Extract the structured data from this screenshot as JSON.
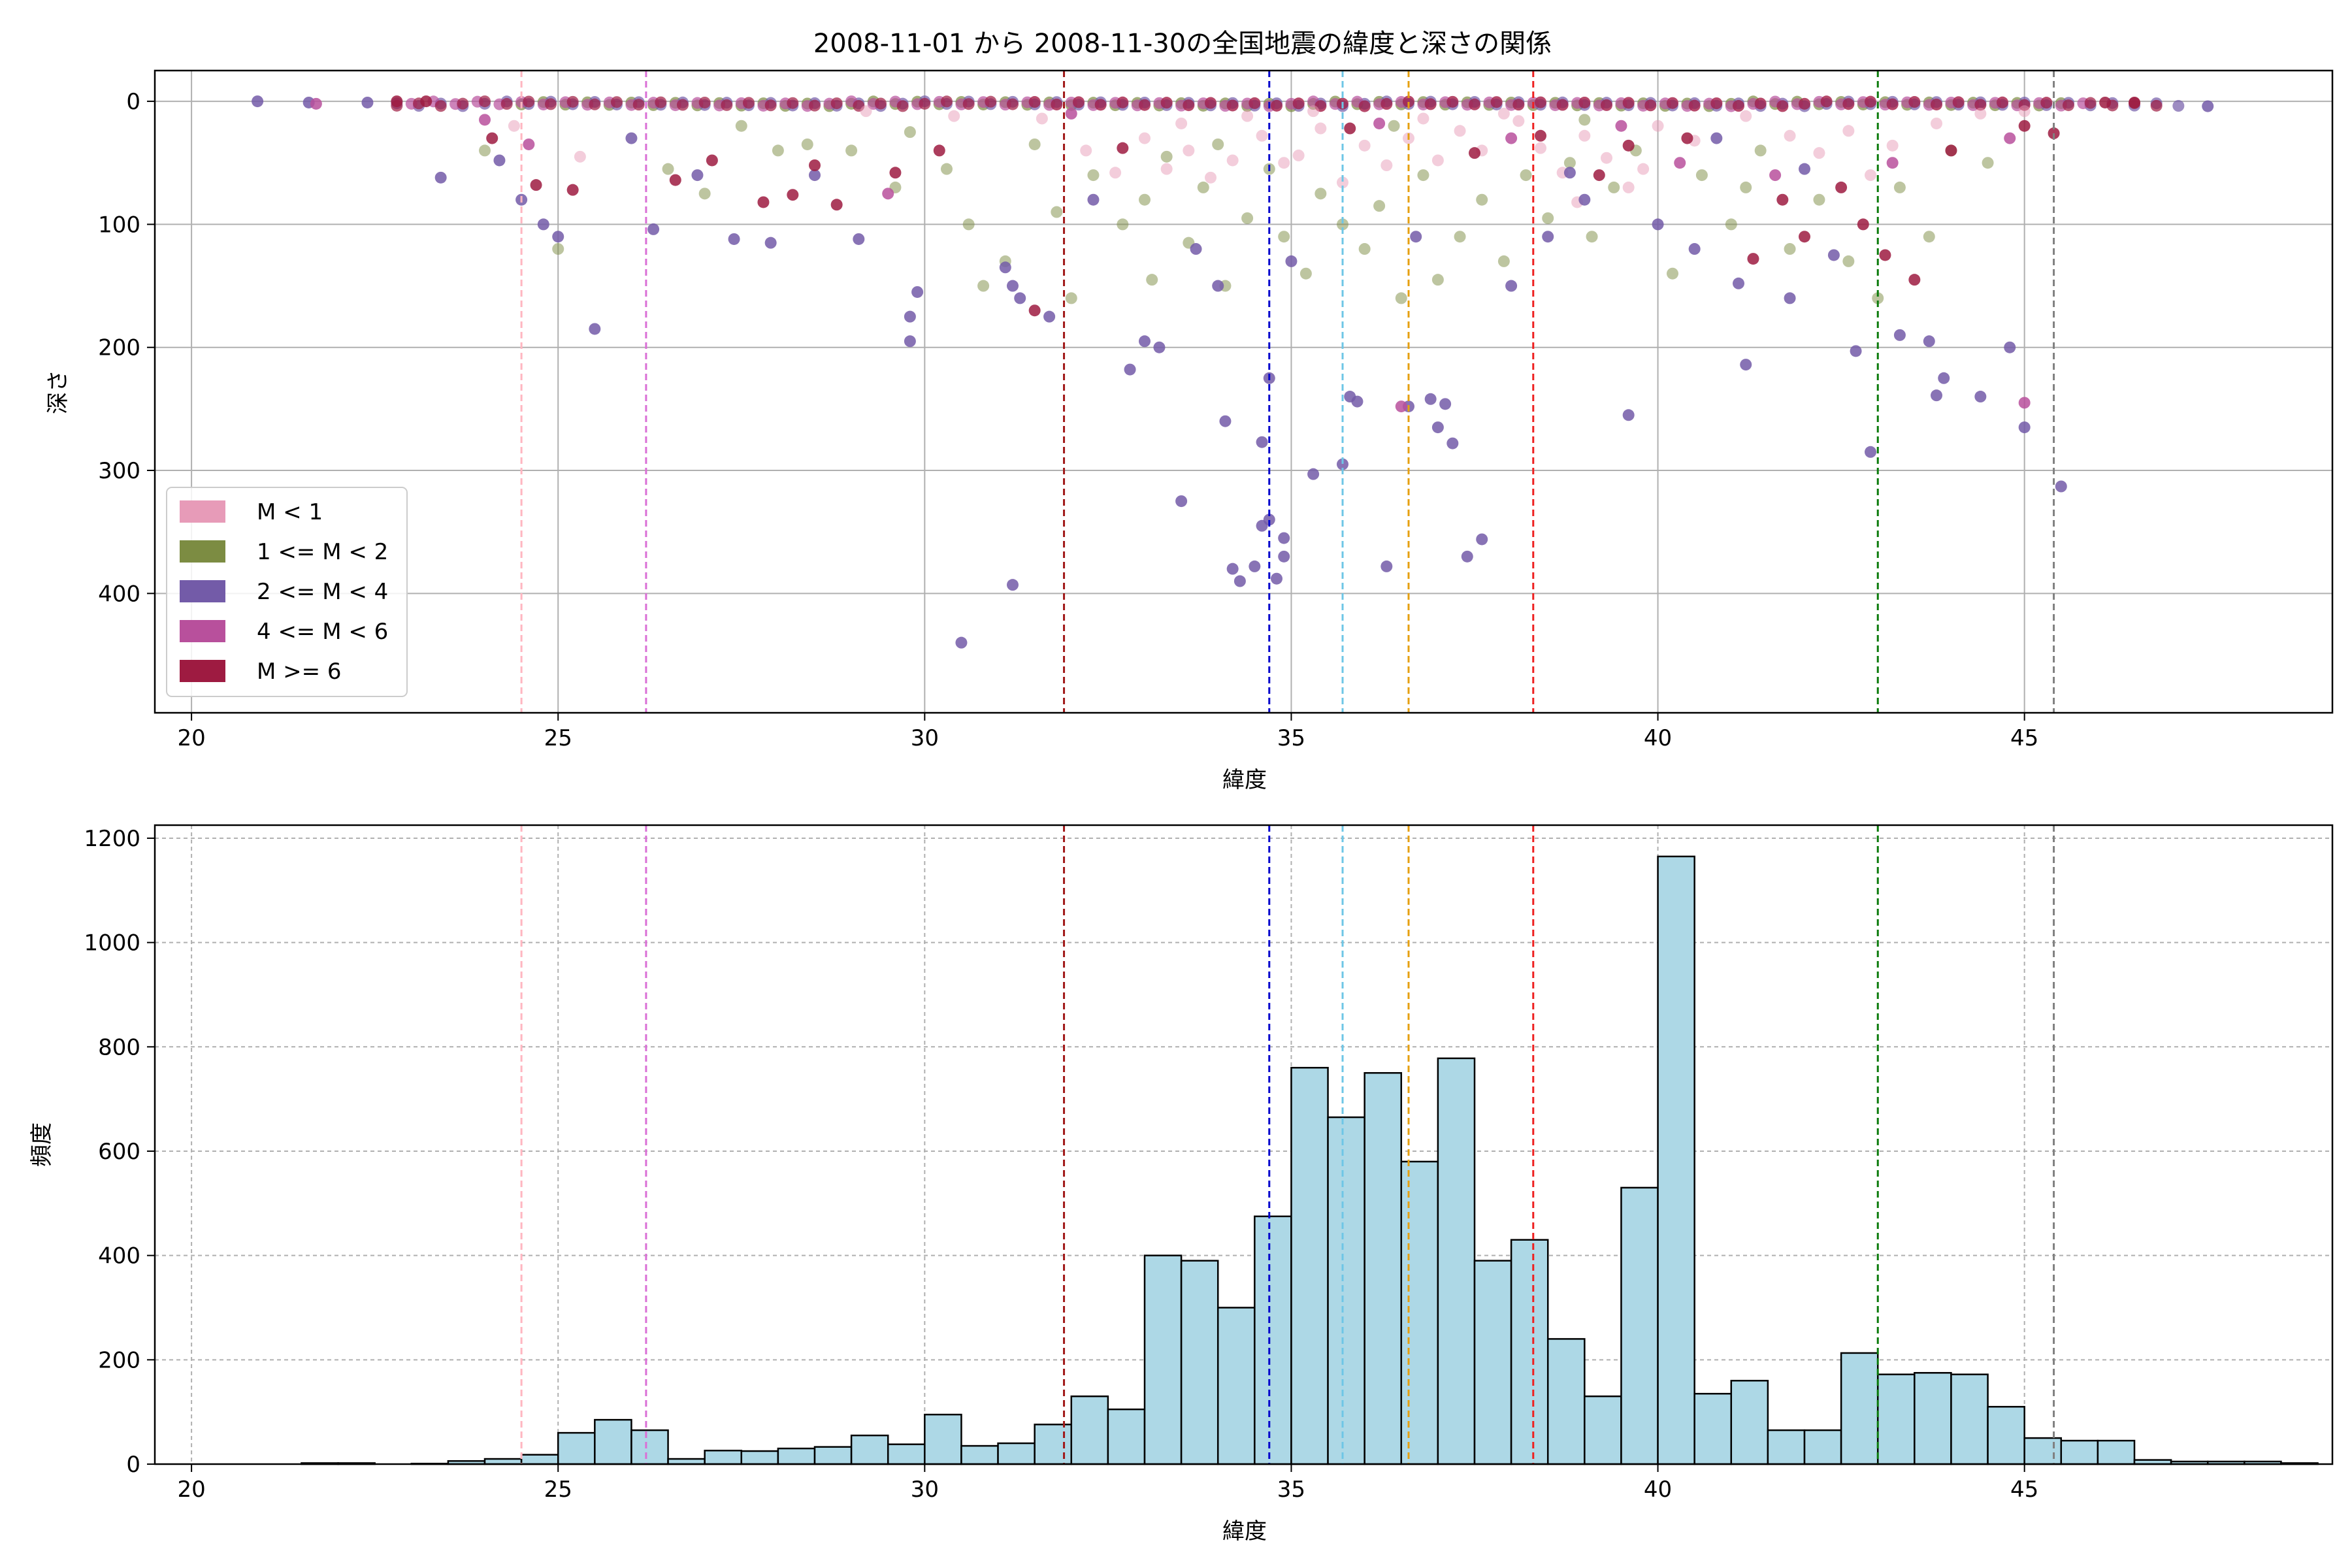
{
  "figure": {
    "title": "2008-11-01 から 2008-11-30の全国地震の緯度と深さの関係"
  },
  "colors": {
    "m_lt1": "#e79bb8",
    "m_1_2": "#7c8c42",
    "m_2_4": "#735ba8",
    "m_4_6": "#b8509c",
    "m_ge6": "#9e1b41",
    "hist_fill": "#add8e6",
    "grid": "#b0b0b0"
  },
  "reference_lines": [
    {
      "x": 24.5,
      "color": "#ffb6c1"
    },
    {
      "x": 26.2,
      "color": "#da70d6"
    },
    {
      "x": 31.9,
      "color": "#a01818"
    },
    {
      "x": 34.7,
      "color": "#0000cc"
    },
    {
      "x": 35.7,
      "color": "#6ec6e6"
    },
    {
      "x": 36.6,
      "color": "#e6a010"
    },
    {
      "x": 38.3,
      "color": "#ee2020"
    },
    {
      "x": 43.0,
      "color": "#0a7a0a"
    },
    {
      "x": 45.4,
      "color": "#808080"
    }
  ],
  "chart_data": [
    {
      "type": "scatter",
      "title": "2008-11-01 から 2008-11-30の全国地震の緯度と深さの関係",
      "xlabel": "緯度",
      "ylabel": "深さ",
      "xlim": [
        19.5,
        49.2
      ],
      "ylim": [
        497,
        -25
      ],
      "y_inverted": true,
      "xticks": [
        20,
        25,
        30,
        35,
        40,
        45
      ],
      "yticks": [
        0,
        100,
        200,
        300,
        400
      ],
      "grid": true,
      "legend_position": "lower-left",
      "legend": [
        {
          "label": "M < 1",
          "color": "#e79bb8"
        },
        {
          "label": "1 <= M < 2",
          "color": "#7c8c42"
        },
        {
          "label": "2 <= M < 4",
          "color": "#735ba8"
        },
        {
          "label": "4 <= M < 6",
          "color": "#b8509c"
        },
        {
          "label": "M >= 6",
          "color": "#9e1b41"
        }
      ],
      "series": [
        {
          "name": "M < 1",
          "color": "#e79bb8",
          "points": [
            [
              24.4,
              20
            ],
            [
              25.3,
              45
            ],
            [
              31.6,
              14
            ],
            [
              32.2,
              40
            ],
            [
              32.6,
              58
            ],
            [
              33.0,
              30
            ],
            [
              33.3,
              55
            ],
            [
              33.6,
              40
            ],
            [
              33.9,
              62
            ],
            [
              34.2,
              48
            ],
            [
              34.6,
              28
            ],
            [
              34.9,
              50
            ],
            [
              35.1,
              44
            ],
            [
              35.4,
              22
            ],
            [
              35.7,
              66
            ],
            [
              36.0,
              36
            ],
            [
              36.3,
              52
            ],
            [
              36.6,
              30
            ],
            [
              37.0,
              48
            ],
            [
              37.3,
              24
            ],
            [
              37.6,
              40
            ],
            [
              38.1,
              16
            ],
            [
              38.4,
              38
            ],
            [
              38.7,
              58
            ],
            [
              39.0,
              28
            ],
            [
              39.3,
              46
            ],
            [
              39.6,
              70
            ],
            [
              40.0,
              20
            ],
            [
              40.5,
              32
            ],
            [
              41.2,
              12
            ],
            [
              41.8,
              28
            ],
            [
              42.2,
              42
            ],
            [
              42.6,
              24
            ],
            [
              43.2,
              36
            ],
            [
              43.8,
              18
            ],
            [
              44.4,
              10
            ],
            [
              45.0,
              8
            ],
            [
              33.5,
              18
            ],
            [
              34.4,
              12
            ],
            [
              35.3,
              8
            ],
            [
              36.8,
              14
            ],
            [
              37.9,
              10
            ],
            [
              29.2,
              8
            ],
            [
              30.4,
              12
            ],
            [
              38.9,
              82
            ],
            [
              39.8,
              55
            ],
            [
              42.9,
              60
            ]
          ]
        },
        {
          "name": "1 <= M < 2",
          "color": "#7c8c42",
          "points": [
            [
              24.0,
              40
            ],
            [
              25.0,
              120
            ],
            [
              26.5,
              55
            ],
            [
              27.5,
              20
            ],
            [
              28.4,
              35
            ],
            [
              29.0,
              40
            ],
            [
              29.6,
              70
            ],
            [
              30.3,
              55
            ],
            [
              30.8,
              150
            ],
            [
              31.1,
              130
            ],
            [
              31.5,
              35
            ],
            [
              31.8,
              90
            ],
            [
              32.3,
              60
            ],
            [
              32.7,
              100
            ],
            [
              33.0,
              80
            ],
            [
              33.3,
              45
            ],
            [
              33.6,
              115
            ],
            [
              33.8,
              70
            ],
            [
              34.1,
              150
            ],
            [
              34.4,
              95
            ],
            [
              34.7,
              55
            ],
            [
              34.9,
              110
            ],
            [
              35.2,
              140
            ],
            [
              35.4,
              75
            ],
            [
              35.7,
              100
            ],
            [
              36.0,
              120
            ],
            [
              36.2,
              85
            ],
            [
              36.5,
              160
            ],
            [
              36.8,
              60
            ],
            [
              37.0,
              145
            ],
            [
              37.3,
              110
            ],
            [
              37.6,
              80
            ],
            [
              37.9,
              130
            ],
            [
              38.2,
              60
            ],
            [
              38.5,
              95
            ],
            [
              38.8,
              50
            ],
            [
              39.1,
              110
            ],
            [
              39.4,
              70
            ],
            [
              39.7,
              40
            ],
            [
              40.2,
              140
            ],
            [
              40.6,
              60
            ],
            [
              41.0,
              100
            ],
            [
              41.4,
              40
            ],
            [
              41.8,
              120
            ],
            [
              42.2,
              80
            ],
            [
              42.6,
              130
            ],
            [
              43.0,
              160
            ],
            [
              43.3,
              70
            ],
            [
              43.7,
              110
            ],
            [
              44.0,
              40
            ],
            [
              44.5,
              50
            ],
            [
              32.0,
              160
            ],
            [
              34.0,
              35
            ],
            [
              36.4,
              20
            ],
            [
              39.0,
              15
            ],
            [
              41.2,
              70
            ],
            [
              29.8,
              25
            ],
            [
              27.0,
              75
            ],
            [
              28.0,
              40
            ],
            [
              33.1,
              145
            ],
            [
              30.6,
              100
            ]
          ]
        },
        {
          "name": "2 <= M < 4",
          "color": "#735ba8",
          "points": [
            [
              20.9,
              0
            ],
            [
              21.6,
              1
            ],
            [
              22.4,
              1
            ],
            [
              23.4,
              62
            ],
            [
              24.2,
              48
            ],
            [
              24.5,
              80
            ],
            [
              24.8,
              100
            ],
            [
              25.0,
              110
            ],
            [
              25.5,
              185
            ],
            [
              26.0,
              30
            ],
            [
              26.3,
              104
            ],
            [
              26.9,
              60
            ],
            [
              27.4,
              112
            ],
            [
              27.9,
              115
            ],
            [
              28.5,
              60
            ],
            [
              29.1,
              112
            ],
            [
              29.8,
              175
            ],
            [
              29.8,
              195
            ],
            [
              29.9,
              155
            ],
            [
              30.5,
              440
            ],
            [
              31.1,
              135
            ],
            [
              31.2,
              150
            ],
            [
              31.3,
              160
            ],
            [
              31.2,
              393
            ],
            [
              31.7,
              175
            ],
            [
              32.3,
              80
            ],
            [
              32.8,
              218
            ],
            [
              33.0,
              195
            ],
            [
              33.2,
              200
            ],
            [
              33.5,
              325
            ],
            [
              34.0,
              150
            ],
            [
              34.1,
              260
            ],
            [
              34.2,
              380
            ],
            [
              34.3,
              390
            ],
            [
              34.5,
              378
            ],
            [
              34.6,
              345
            ],
            [
              34.7,
              340
            ],
            [
              34.6,
              277
            ],
            [
              34.7,
              225
            ],
            [
              34.8,
              388
            ],
            [
              34.9,
              370
            ],
            [
              34.9,
              355
            ],
            [
              35.0,
              130
            ],
            [
              35.3,
              303
            ],
            [
              35.7,
              295
            ],
            [
              35.8,
              240
            ],
            [
              35.9,
              244
            ],
            [
              36.3,
              378
            ],
            [
              36.6,
              248
            ],
            [
              36.9,
              242
            ],
            [
              37.0,
              265
            ],
            [
              37.1,
              246
            ],
            [
              37.2,
              278
            ],
            [
              37.4,
              370
            ],
            [
              37.6,
              356
            ],
            [
              38.0,
              150
            ],
            [
              38.5,
              110
            ],
            [
              39.0,
              80
            ],
            [
              39.6,
              255
            ],
            [
              40.0,
              100
            ],
            [
              40.5,
              120
            ],
            [
              41.1,
              148
            ],
            [
              41.2,
              214
            ],
            [
              41.8,
              160
            ],
            [
              42.4,
              125
            ],
            [
              42.7,
              203
            ],
            [
              42.9,
              285
            ],
            [
              43.3,
              190
            ],
            [
              43.7,
              195
            ],
            [
              43.8,
              239
            ],
            [
              43.9,
              225
            ],
            [
              44.4,
              240
            ],
            [
              44.8,
              200
            ],
            [
              45.0,
              265
            ],
            [
              45.5,
              313
            ],
            [
              47.5,
              4
            ],
            [
              33.7,
              120
            ],
            [
              36.7,
              110
            ],
            [
              38.8,
              58
            ],
            [
              40.8,
              30
            ],
            [
              42.0,
              55
            ]
          ]
        },
        {
          "name": "4 <= M < 6",
          "color": "#b8509c",
          "points": [
            [
              21.7,
              2
            ],
            [
              24.0,
              15
            ],
            [
              24.6,
              35
            ],
            [
              29.5,
              75
            ],
            [
              32.0,
              10
            ],
            [
              36.5,
              248
            ],
            [
              38.0,
              30
            ],
            [
              40.3,
              50
            ],
            [
              43.2,
              50
            ],
            [
              45.0,
              245
            ],
            [
              44.8,
              30
            ],
            [
              36.2,
              18
            ],
            [
              41.6,
              60
            ],
            [
              39.5,
              20
            ]
          ]
        },
        {
          "name": "M >= 6",
          "color": "#9e1b41",
          "points": [
            [
              22.8,
              0
            ],
            [
              23.2,
              0
            ],
            [
              24.1,
              30
            ],
            [
              24.7,
              68
            ],
            [
              25.2,
              72
            ],
            [
              26.6,
              64
            ],
            [
              27.1,
              48
            ],
            [
              27.8,
              82
            ],
            [
              28.2,
              76
            ],
            [
              28.5,
              52
            ],
            [
              28.8,
              84
            ],
            [
              29.6,
              58
            ],
            [
              30.2,
              40
            ],
            [
              31.5,
              170
            ],
            [
              32.7,
              38
            ],
            [
              35.8,
              22
            ],
            [
              37.5,
              42
            ],
            [
              38.4,
              28
            ],
            [
              39.2,
              60
            ],
            [
              39.6,
              36
            ],
            [
              40.4,
              30
            ],
            [
              41.3,
              128
            ],
            [
              41.7,
              80
            ],
            [
              42.0,
              110
            ],
            [
              42.5,
              70
            ],
            [
              42.8,
              100
            ],
            [
              43.1,
              125
            ],
            [
              43.5,
              145
            ],
            [
              44.0,
              40
            ],
            [
              45.0,
              20
            ],
            [
              45.4,
              26
            ],
            [
              46.1,
              1
            ],
            [
              46.5,
              1
            ]
          ]
        }
      ]
    },
    {
      "type": "bar",
      "subtype": "histogram",
      "xlabel": "緯度",
      "ylabel": "頻度",
      "xlim": [
        19.5,
        49.2
      ],
      "ylim": [
        0,
        1225
      ],
      "xticks": [
        20,
        25,
        30,
        35,
        40,
        45
      ],
      "yticks": [
        0,
        200,
        400,
        600,
        800,
        1000,
        1200
      ],
      "grid": true,
      "bin_start": 20.5,
      "bin_width": 0.5,
      "values": [
        0,
        0,
        2,
        2,
        0,
        1,
        6,
        10,
        18,
        60,
        85,
        65,
        10,
        26,
        25,
        30,
        33,
        55,
        38,
        95,
        35,
        40,
        76,
        130,
        105,
        400,
        390,
        300,
        475,
        760,
        665,
        750,
        580,
        778,
        390,
        430,
        240,
        130,
        530,
        1165,
        135,
        160,
        65,
        65,
        213,
        172,
        175,
        172,
        110,
        50,
        45,
        45,
        8,
        5,
        5,
        5,
        2
      ]
    }
  ]
}
